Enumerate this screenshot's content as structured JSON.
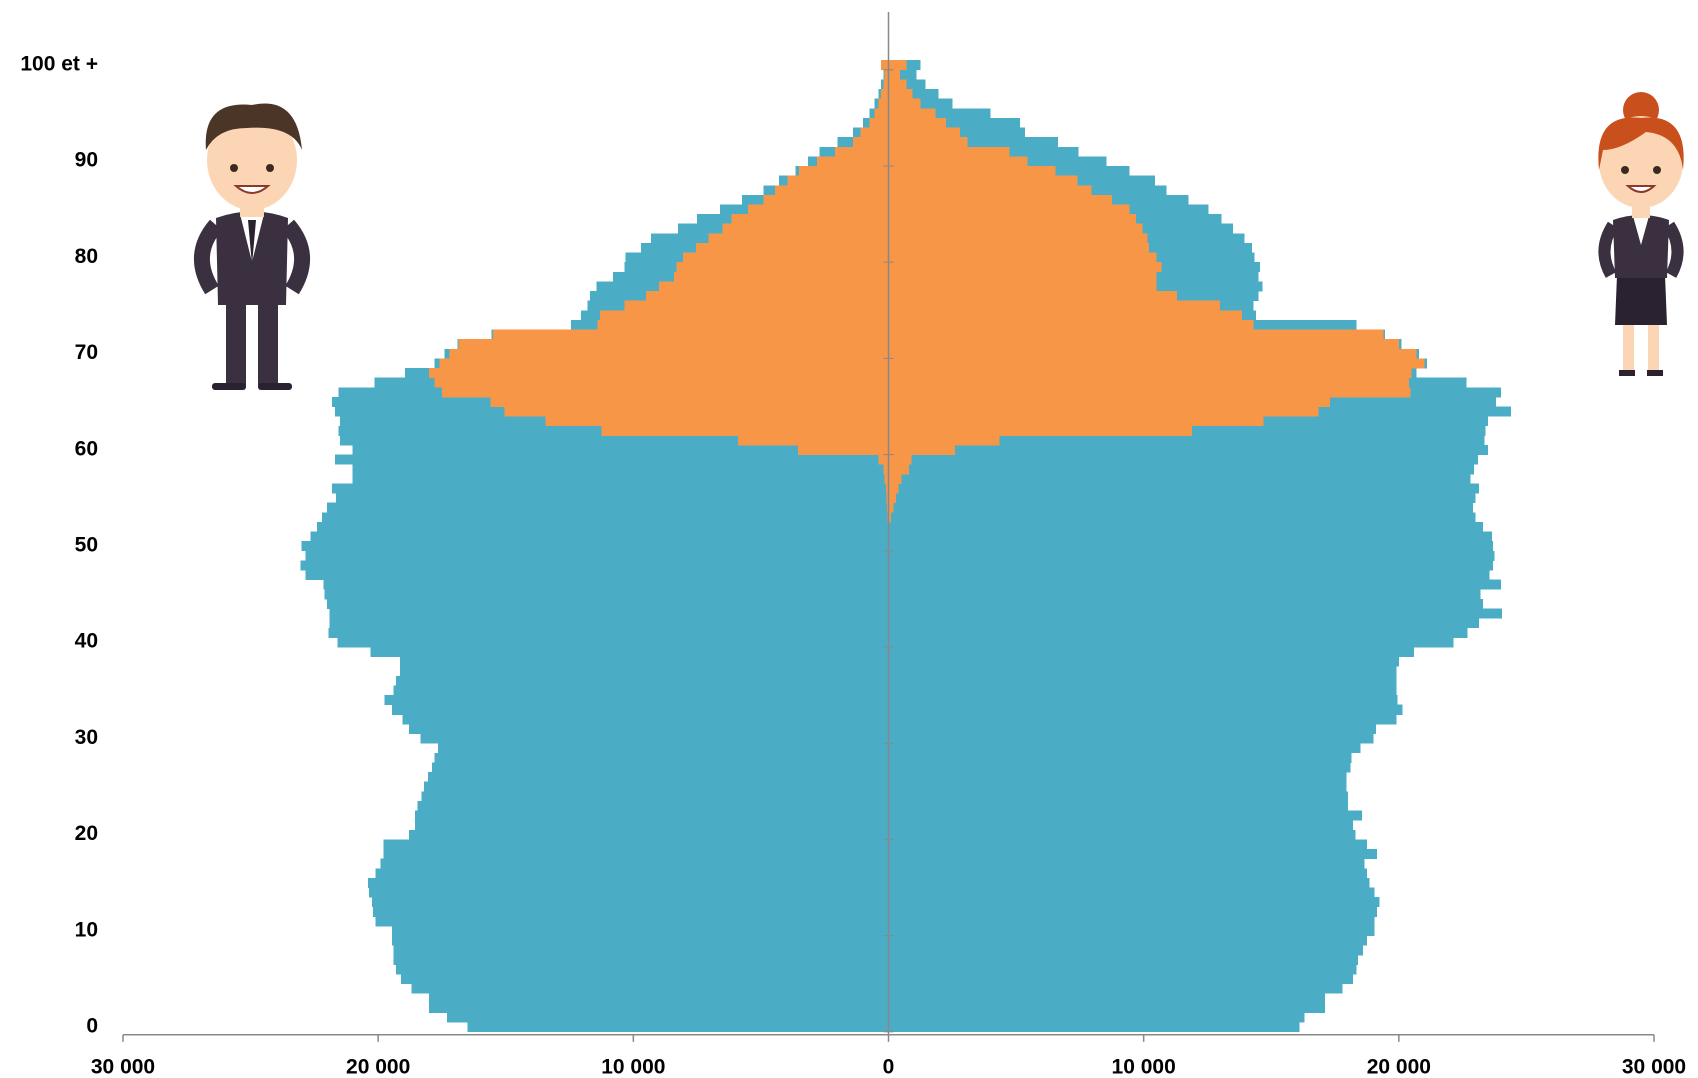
{
  "chart_data": {
    "type": "pyramid",
    "categories": [
      "0",
      null,
      null,
      null,
      null,
      null,
      null,
      null,
      null,
      null,
      "10",
      null,
      null,
      null,
      null,
      null,
      null,
      null,
      null,
      null,
      "20",
      null,
      null,
      null,
      null,
      null,
      null,
      null,
      null,
      null,
      "30",
      null,
      null,
      null,
      null,
      null,
      null,
      null,
      null,
      null,
      "40",
      null,
      null,
      null,
      null,
      null,
      null,
      null,
      null,
      null,
      "50",
      null,
      null,
      null,
      null,
      null,
      null,
      null,
      null,
      null,
      "60",
      null,
      null,
      null,
      null,
      null,
      null,
      null,
      null,
      null,
      "70",
      null,
      null,
      null,
      null,
      null,
      null,
      null,
      null,
      null,
      "80",
      null,
      null,
      null,
      null,
      null,
      null,
      null,
      null,
      null,
      "90",
      null,
      null,
      null,
      null,
      null,
      null,
      null,
      null,
      null,
      "100 et +"
    ],
    "series": [
      {
        "color": "#4bacc6",
        "values": [
          -16500,
          -17300,
          -18000,
          -18000,
          -18700,
          -19100,
          -19300,
          -19400,
          -19400,
          -19450,
          -19450,
          -20100,
          -20200,
          -20250,
          -20350,
          -20400,
          -20100,
          -19900,
          -19800,
          -19800,
          -18800,
          -18550,
          -18550,
          -18450,
          -18300,
          -18200,
          -18050,
          -17900,
          -17800,
          -17650,
          -18350,
          -18800,
          -19050,
          -19450,
          -19750,
          -19400,
          -19300,
          -19150,
          -19150,
          -20300,
          -21600,
          -21950,
          -21900,
          -21900,
          -22000,
          -22100,
          -22150,
          -22850,
          -23050,
          -22850,
          -23000,
          -22650,
          -22400,
          -22200,
          -22000,
          -21650,
          -21800,
          -21000,
          -21000,
          -21700,
          -21000,
          -21500,
          -21550,
          -21500,
          -21700,
          -21800,
          -21550,
          -20150,
          -18950,
          -17800,
          -17400,
          -16900,
          -15550,
          -12450,
          -12050,
          -11800,
          -11700,
          -11450,
          -10800,
          -10350,
          -10300,
          -9700,
          -9300,
          -8250,
          -7500,
          -6600,
          -5750,
          -4900,
          -4300,
          -3650,
          -3150,
          -2700,
          -2000,
          -1400,
          -1000,
          -750,
          -550,
          -400,
          -300,
          -200,
          -300
        ]
      },
      {
        "color": "#4bacc6",
        "values": [
          16100,
          16300,
          17100,
          17100,
          17800,
          18200,
          18350,
          18400,
          18600,
          18750,
          19050,
          19050,
          19150,
          19250,
          19050,
          18850,
          18750,
          18650,
          19150,
          18750,
          18300,
          18200,
          18550,
          18000,
          18000,
          17950,
          17950,
          18100,
          18150,
          18500,
          19000,
          19100,
          19900,
          20150,
          19950,
          19900,
          19900,
          19900,
          20000,
          20600,
          22150,
          22700,
          23150,
          24050,
          23300,
          23200,
          24000,
          23550,
          23700,
          23750,
          23700,
          23650,
          23300,
          23000,
          22900,
          23000,
          23150,
          22800,
          22950,
          23100,
          23500,
          23350,
          23400,
          23500,
          24400,
          23800,
          24000,
          22650,
          20700,
          21100,
          20800,
          20100,
          19450,
          18350,
          14400,
          14300,
          14500,
          14650,
          14500,
          14550,
          14350,
          14250,
          13950,
          13500,
          13050,
          12550,
          11750,
          10900,
          10450,
          9450,
          8550,
          7450,
          6650,
          5350,
          5150,
          4000,
          2500,
          1950,
          1450,
          1100,
          1250
        ]
      },
      {
        "color": "#f79646",
        "values": [
          0,
          0,
          0,
          0,
          0,
          0,
          0,
          0,
          0,
          0,
          0,
          0,
          0,
          0,
          0,
          0,
          0,
          0,
          0,
          0,
          0,
          0,
          0,
          0,
          0,
          0,
          0,
          0,
          0,
          0,
          0,
          0,
          0,
          0,
          0,
          0,
          0,
          0,
          0,
          0,
          0,
          0,
          0,
          0,
          0,
          0,
          0,
          0,
          0,
          0,
          0,
          0,
          0,
          -30,
          -50,
          -80,
          -100,
          -150,
          -200,
          -400,
          -3550,
          -5900,
          -11250,
          -13450,
          -15050,
          -15600,
          -17500,
          -17800,
          -18000,
          -17600,
          -17200,
          -16850,
          -15500,
          -11400,
          -11300,
          -10350,
          -9500,
          -9000,
          -8400,
          -8300,
          -8050,
          -7550,
          -7050,
          -6500,
          -6150,
          -5500,
          -4900,
          -4450,
          -3950,
          -3500,
          -2800,
          -2100,
          -1400,
          -1100,
          -750,
          -550,
          -400,
          -300,
          -200,
          -150,
          -300
        ]
      },
      {
        "color": "#f79646",
        "values": [
          0,
          0,
          0,
          0,
          0,
          0,
          0,
          0,
          0,
          0,
          0,
          0,
          0,
          0,
          0,
          0,
          0,
          0,
          0,
          0,
          0,
          0,
          0,
          0,
          0,
          0,
          0,
          0,
          0,
          0,
          0,
          0,
          0,
          0,
          0,
          0,
          0,
          0,
          0,
          0,
          0,
          0,
          0,
          0,
          0,
          0,
          0,
          0,
          0,
          0,
          0,
          0,
          0,
          100,
          200,
          300,
          400,
          500,
          800,
          900,
          2600,
          4350,
          11900,
          14700,
          16850,
          17300,
          20450,
          20400,
          20500,
          21000,
          20700,
          20000,
          19400,
          14300,
          13850,
          13000,
          11300,
          10500,
          10500,
          10700,
          10500,
          10200,
          10150,
          9950,
          9700,
          9450,
          8750,
          7950,
          7400,
          6550,
          5450,
          4750,
          3100,
          2800,
          2250,
          1850,
          1250,
          950,
          700,
          450,
          700
        ]
      }
    ],
    "xlim": [
      -30000,
      30000
    ],
    "xticks": [
      {
        "value": -30000,
        "label": "30 000"
      },
      {
        "value": -20000,
        "label": "20 000"
      },
      {
        "value": -10000,
        "label": "10 000"
      },
      0,
      {
        "value": 10000,
        "label": "10 000"
      },
      {
        "value": 20000,
        "label": "20 000"
      },
      {
        "value": 30000,
        "label": "30 000"
      }
    ]
  }
}
